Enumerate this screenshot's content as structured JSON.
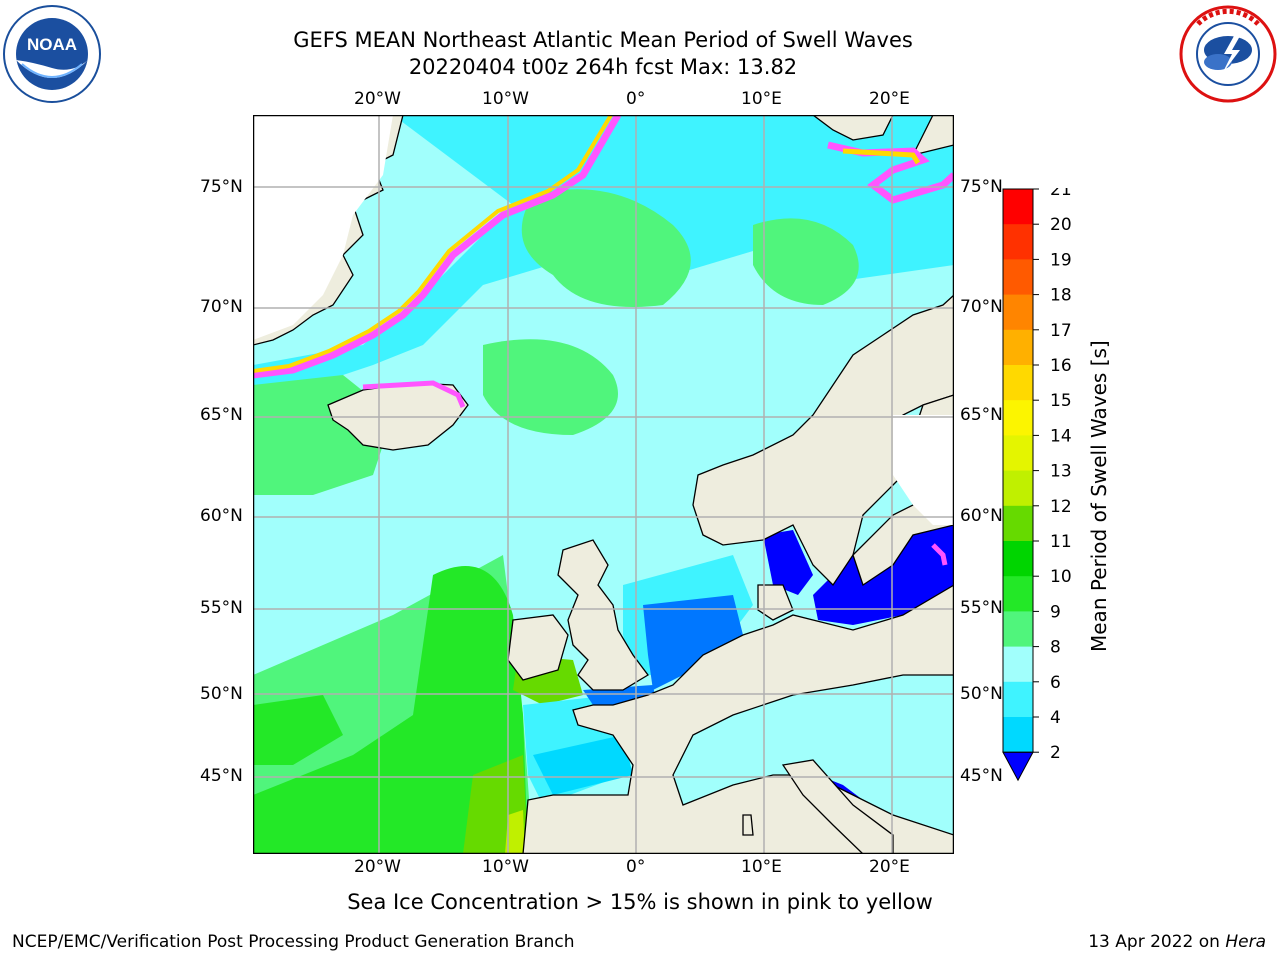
{
  "title": {
    "line1": "GEFS MEAN Northeast Atlantic Mean Period of Swell Waves",
    "line2": "20220404 t00z 264h fcst   Max: 13.82"
  },
  "logos": {
    "left": "NOAA",
    "left_ring_text": "NATIONAL OCEANIC AND ATMOSPHERIC ADMINISTRATION · U.S. DEPARTMENT OF COMMERCE",
    "right_ring_text": "NATIONAL WEATHER SERVICE"
  },
  "map": {
    "lon_ticks": [
      "20°W",
      "10°W",
      "0°",
      "10°E",
      "20°E"
    ],
    "lat_ticks": [
      "75°N",
      "70°N",
      "65°N",
      "60°N",
      "55°N",
      "50°N",
      "45°N"
    ],
    "grid": true,
    "projection": "polar stereographic",
    "colors": {
      "land": "#eeedde",
      "coast": "#000000",
      "grid": "#b0b0b0",
      "no_data": "#ffffff"
    }
  },
  "colorbar": {
    "label": "Mean Period of Swell Waves [s]",
    "ticks": [
      "21",
      "20",
      "19",
      "18",
      "17",
      "16",
      "15",
      "14",
      "13",
      "12",
      "11",
      "10",
      "9",
      "8",
      "6",
      "4",
      "2"
    ],
    "levels": [
      2,
      4,
      6,
      8,
      9,
      10,
      11,
      12,
      13,
      14,
      15,
      16,
      17,
      18,
      19,
      20,
      21
    ],
    "colors": [
      "#0077ff",
      "#00d9ff",
      "#3ff3ff",
      "#a1fffc",
      "#50f57c",
      "#23e827",
      "#00d500",
      "#66da00",
      "#c0f000",
      "#e4f500",
      "#fcf500",
      "#ffd900",
      "#ffb000",
      "#ff8500",
      "#ff5a00",
      "#ff3100",
      "#ff0000"
    ],
    "under_color": "#0000ff"
  },
  "caption": "Sea Ice Concentration > 15% is shown in pink to yellow",
  "footer": {
    "left": "NCEP/EMC/Verification Post Processing Product Generation Branch",
    "right_date": "13 Apr 2022 on ",
    "right_host": "Hera"
  }
}
